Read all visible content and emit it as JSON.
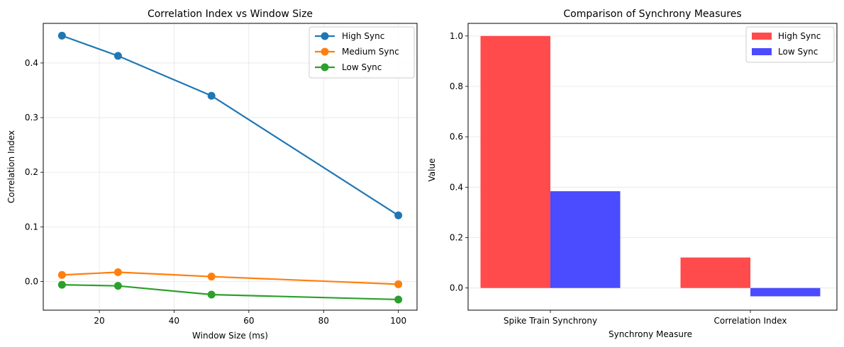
{
  "chart_data": [
    {
      "type": "line",
      "title": "Correlation Index vs Window Size",
      "xlabel": "Window Size (ms)",
      "ylabel": "Correlation Index",
      "x": [
        10,
        25,
        50,
        100
      ],
      "xlim": [
        5,
        105
      ],
      "ylim": [
        -0.0525,
        0.4725
      ],
      "xticks": [
        20,
        40,
        60,
        80,
        100
      ],
      "yticks": [
        0.0,
        0.1,
        0.2,
        0.3,
        0.4
      ],
      "grid": true,
      "legend_position": "top-right",
      "series": [
        {
          "name": "High Sync",
          "color": "#1f77b4",
          "values": [
            0.45,
            0.413,
            0.34,
            0.121
          ]
        },
        {
          "name": "Medium Sync",
          "color": "#ff7f0e",
          "values": [
            0.012,
            0.017,
            0.009,
            -0.005
          ]
        },
        {
          "name": "Low Sync",
          "color": "#2ca02c",
          "values": [
            -0.006,
            -0.008,
            -0.024,
            -0.033
          ]
        }
      ]
    },
    {
      "type": "bar",
      "title": "Comparison of Synchrony Measures",
      "xlabel": "Synchrony Measure",
      "ylabel": "Value",
      "categories": [
        "Spike Train Synchrony",
        "Correlation Index"
      ],
      "ylim": [
        -0.088,
        1.05
      ],
      "yticks": [
        0.0,
        0.2,
        0.4,
        0.6,
        0.8,
        1.0
      ],
      "grid": true,
      "legend_position": "top-right",
      "series": [
        {
          "name": "High Sync",
          "color": "#ff4b4b",
          "values": [
            1.0,
            0.121
          ]
        },
        {
          "name": "Low Sync",
          "color": "#4b4bff",
          "values": [
            0.384,
            -0.033
          ]
        }
      ]
    }
  ]
}
